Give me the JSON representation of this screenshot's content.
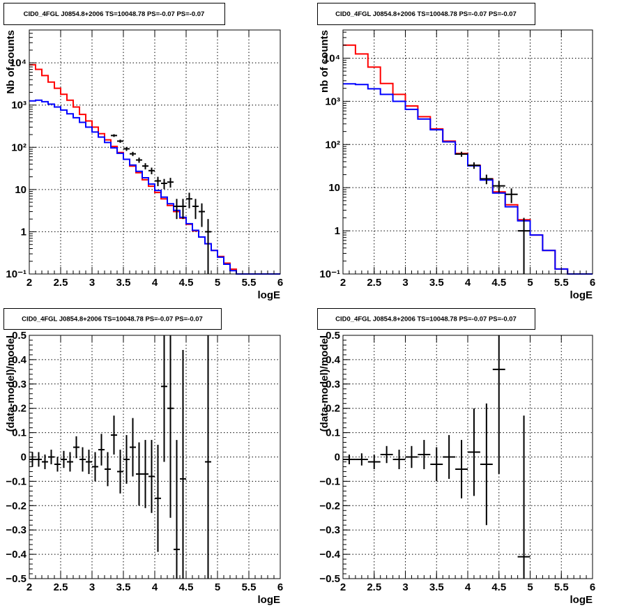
{
  "colors": {
    "model_red": "#ff0000",
    "model_blue": "#0000ff",
    "data": "#000000",
    "grid": "#000000"
  },
  "chart_data": [
    {
      "type": "line",
      "title": "CID0_4FGL J0854.8+2006 TS=10048.78 PS=-0.07 PS=-0.07",
      "xlabel": "logE",
      "ylabel": "Nb of counts",
      "xlim": [
        2,
        6
      ],
      "ylim": [
        0.1,
        60000
      ],
      "yscale": "log",
      "xticks": [
        2,
        2.5,
        3,
        3.5,
        4,
        4.5,
        5,
        5.5,
        6
      ],
      "xtick_labels": [
        "2",
        "2.5",
        "3",
        "3.5",
        "4",
        "4.5",
        "5",
        "5.5",
        "6"
      ],
      "yticks": [
        0.1,
        1,
        10,
        100,
        1000,
        10000
      ],
      "ytick_labels": [
        "10⁻¹",
        "1",
        "10",
        "10²",
        "10³",
        "10⁴"
      ],
      "grid": true,
      "bin_width": 0.1,
      "series": [
        {
          "kind": "step",
          "color": "red",
          "x": [
            2.05,
            2.15,
            2.25,
            2.35,
            2.45,
            2.55,
            2.65,
            2.75,
            2.85,
            2.95,
            3.05,
            3.15,
            3.25,
            3.35,
            3.45,
            3.55,
            3.65,
            3.75,
            3.85,
            3.95,
            4.05,
            4.15,
            4.25,
            4.35,
            4.45,
            4.55,
            4.65,
            4.75,
            4.85,
            4.95,
            5.05,
            5.15,
            5.25,
            5.35,
            5.45,
            5.55,
            5.65,
            5.75,
            5.85,
            5.95
          ],
          "y": [
            9000,
            7000,
            5000,
            3500,
            2500,
            1800,
            1300,
            900,
            600,
            420,
            300,
            210,
            150,
            105,
            75,
            52,
            36,
            25,
            17,
            12,
            8.5,
            6,
            4.2,
            3,
            2.1,
            1.5,
            1.05,
            0.75,
            0.52,
            0.36,
            0.26,
            0.18,
            0.13,
            0.1,
            0.1,
            0.1,
            0.1,
            0.1,
            0.1,
            0.1
          ]
        },
        {
          "kind": "step",
          "color": "blue",
          "x": [
            2.05,
            2.15,
            2.25,
            2.35,
            2.45,
            2.55,
            2.65,
            2.75,
            2.85,
            2.95,
            3.05,
            3.15,
            3.25,
            3.35,
            3.45,
            3.55,
            3.65,
            3.75,
            3.85,
            3.95,
            4.05,
            4.15,
            4.25,
            4.35,
            4.45,
            4.55,
            4.65,
            4.75,
            4.85,
            4.95,
            5.05,
            5.15,
            5.25,
            5.35,
            5.45,
            5.55,
            5.65,
            5.75,
            5.85,
            5.95
          ],
          "y": [
            1250,
            1300,
            1200,
            1050,
            900,
            760,
            620,
            500,
            390,
            300,
            230,
            175,
            130,
            97,
            72,
            52,
            38,
            27,
            19,
            13.5,
            9.5,
            6.6,
            4.6,
            3.2,
            2.2,
            1.55,
            1.08,
            0.75,
            0.52,
            0.36,
            0.25,
            0.17,
            0.12,
            0.1,
            0.1,
            0.1,
            0.1,
            0.1,
            0.1,
            0.1
          ]
        },
        {
          "kind": "errorbars",
          "color": "black",
          "x": [
            3.35,
            3.45,
            3.55,
            3.65,
            3.75,
            3.85,
            3.95,
            4.05,
            4.15,
            4.25,
            4.35,
            4.45,
            4.55,
            4.65,
            4.75,
            4.85
          ],
          "y": [
            190,
            140,
            92,
            70,
            50,
            36,
            28,
            16,
            14,
            15,
            4,
            4,
            6,
            4,
            3,
            1
          ],
          "err": [
            14,
            12,
            10,
            8,
            7,
            6,
            5,
            4,
            3.8,
            3.9,
            2,
            2,
            2.4,
            2,
            1.7,
            1
          ]
        }
      ]
    },
    {
      "type": "line",
      "title": "CID0_4FGL J0854.8+2006 TS=10048.78 PS=-0.07 PS=-0.07",
      "xlabel": "logE",
      "ylabel": "nb of counts",
      "xlim": [
        2,
        6
      ],
      "ylim": [
        0.1,
        45000
      ],
      "yscale": "log",
      "xticks": [
        2,
        2.5,
        3,
        3.5,
        4,
        4.5,
        5,
        5.5,
        6
      ],
      "xtick_labels": [
        "2",
        "2.5",
        "3",
        "3.5",
        "4",
        "4.5",
        "5",
        "5.5",
        "6"
      ],
      "yticks": [
        0.1,
        1,
        10,
        100,
        1000,
        10000
      ],
      "ytick_labels": [
        "10⁻¹",
        "1",
        "10",
        "10²",
        "10³",
        "10⁴"
      ],
      "grid": true,
      "bin_width": 0.2,
      "series": [
        {
          "kind": "step",
          "color": "red",
          "x": [
            2.1,
            2.3,
            2.5,
            2.7,
            2.9,
            3.1,
            3.3,
            3.5,
            3.7,
            3.9,
            4.1,
            4.3,
            4.5,
            4.7,
            4.9,
            5.1,
            5.3,
            5.5,
            5.7,
            5.9
          ],
          "y": [
            20000,
            12500,
            6200,
            2600,
            1450,
            780,
            440,
            230,
            120,
            62,
            33,
            16,
            8,
            4,
            1.8,
            0.8,
            0.35,
            0.13,
            0.1,
            0.1
          ]
        },
        {
          "kind": "step",
          "color": "blue",
          "x": [
            2.1,
            2.3,
            2.5,
            2.7,
            2.9,
            3.1,
            3.3,
            3.5,
            3.7,
            3.9,
            4.1,
            4.3,
            4.5,
            4.7,
            4.9,
            5.1,
            5.3,
            5.5,
            5.7,
            5.9
          ],
          "y": [
            2550,
            2450,
            1950,
            1450,
            1000,
            650,
            390,
            220,
            115,
            60,
            32,
            15,
            7.5,
            3.6,
            1.7,
            0.8,
            0.35,
            0.13,
            0.1,
            0.1
          ]
        },
        {
          "kind": "errorbars",
          "color": "black",
          "x": [
            3.9,
            4.1,
            4.3,
            4.5,
            4.7,
            4.9
          ],
          "y": [
            60,
            33,
            16,
            11,
            7,
            1
          ],
          "err": [
            8,
            5.7,
            4,
            3.3,
            2.6,
            1
          ]
        }
      ]
    },
    {
      "type": "scatter",
      "title": "CID0_4FGL J0854.8+2006 TS=10048.78 PS=-0.07 PS=-0.07",
      "xlabel": "logE",
      "ylabel": "(data-model)/model",
      "xlim": [
        2,
        6
      ],
      "ylim": [
        -0.5,
        0.5
      ],
      "xticks": [
        2,
        2.5,
        3,
        3.5,
        4,
        4.5,
        5,
        5.5,
        6
      ],
      "xtick_labels": [
        "2",
        "2.5",
        "3",
        "3.5",
        "4",
        "4.5",
        "5",
        "5.5",
        "6"
      ],
      "yticks": [
        -0.5,
        -0.4,
        -0.3,
        -0.2,
        -0.1,
        0,
        0.1,
        0.2,
        0.3,
        0.4,
        0.5
      ],
      "ytick_labels": [
        "−0.5",
        "−0.4",
        "−0.3",
        "−0.2",
        "−0.1",
        "0",
        "0.1",
        "0.2",
        "0.3",
        "0.4",
        "0.5"
      ],
      "grid": true,
      "bin_width": 0.1,
      "series": [
        {
          "kind": "errorbars",
          "color": "black",
          "x": [
            2.05,
            2.15,
            2.25,
            2.35,
            2.45,
            2.55,
            2.65,
            2.75,
            2.85,
            2.95,
            3.05,
            3.15,
            3.25,
            3.35,
            3.45,
            3.55,
            3.65,
            3.75,
            3.85,
            3.95,
            4.05,
            4.15,
            4.25,
            4.35,
            4.45,
            4.85
          ],
          "y": [
            -0.01,
            -0.01,
            -0.02,
            0.0,
            -0.03,
            -0.01,
            -0.02,
            0.04,
            -0.01,
            -0.02,
            -0.04,
            0.03,
            -0.05,
            0.09,
            -0.06,
            -0.01,
            0.04,
            -0.07,
            -0.07,
            -0.08,
            -0.17,
            0.29,
            0.2,
            -0.38,
            -0.09,
            -0.02
          ],
          "err": [
            0.03,
            0.03,
            0.03,
            0.03,
            0.03,
            0.035,
            0.04,
            0.045,
            0.05,
            0.05,
            0.06,
            0.065,
            0.07,
            0.08,
            0.09,
            0.1,
            0.12,
            0.13,
            0.14,
            0.15,
            0.22,
            0.31,
            0.45,
            0.45,
            0.53,
            0.9
          ]
        }
      ]
    },
    {
      "type": "scatter",
      "title": "CID0_4FGL J0854.8+2006 TS=10048.78 PS=-0.07 PS=-0.07",
      "xlabel": "logE",
      "ylabel": "(data-model)/model",
      "xlim": [
        2,
        6
      ],
      "ylim": [
        -0.5,
        0.5
      ],
      "xticks": [
        2,
        2.5,
        3,
        3.5,
        4,
        4.5,
        5,
        5.5,
        6
      ],
      "xtick_labels": [
        "2",
        "2.5",
        "3",
        "3.5",
        "4",
        "4.5",
        "5",
        "5.5",
        "6"
      ],
      "yticks": [
        -0.5,
        -0.4,
        -0.3,
        -0.2,
        -0.1,
        0,
        0.1,
        0.2,
        0.3,
        0.4,
        0.5
      ],
      "ytick_labels": [
        "−0.5",
        "−0.4",
        "−0.3",
        "−0.2",
        "−0.1",
        "0",
        "0.1",
        "0.2",
        "0.3",
        "0.4",
        "0.5"
      ],
      "grid": true,
      "bin_width": 0.2,
      "series": [
        {
          "kind": "errorbars",
          "color": "black",
          "x": [
            2.1,
            2.3,
            2.5,
            2.7,
            2.9,
            3.1,
            3.3,
            3.5,
            3.7,
            3.9,
            4.1,
            4.3,
            4.5,
            4.9
          ],
          "y": [
            -0.01,
            -0.01,
            -0.02,
            0.01,
            -0.01,
            0.0,
            0.01,
            -0.03,
            0.0,
            -0.05,
            0.02,
            -0.03,
            0.36,
            -0.41
          ],
          "err": [
            0.02,
            0.025,
            0.03,
            0.035,
            0.04,
            0.045,
            0.06,
            0.07,
            0.09,
            0.12,
            0.18,
            0.25,
            0.43,
            0.58
          ]
        }
      ]
    }
  ]
}
